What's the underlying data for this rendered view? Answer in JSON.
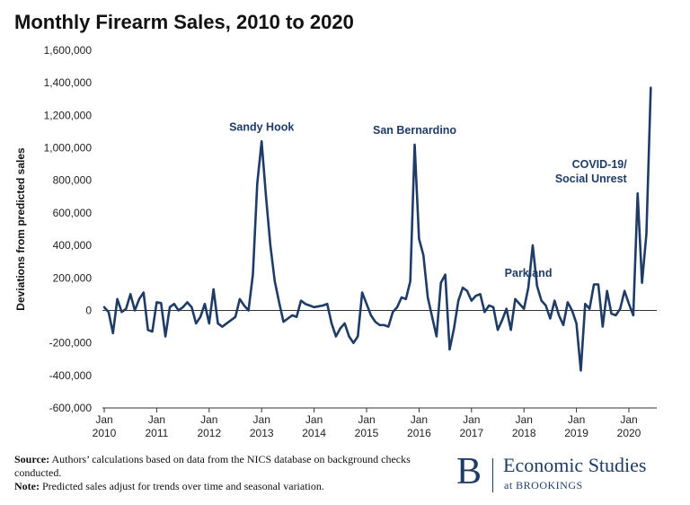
{
  "title": "Monthly Firearm Sales, 2010 to 2020",
  "chart_data": {
    "type": "line",
    "title": "Monthly Firearm Sales, 2010 to 2020",
    "xlabel": "",
    "ylabel": "Deviations from predicted sales",
    "ylim": [
      -600000,
      1600000
    ],
    "y_ticks": [
      -600000,
      -400000,
      -200000,
      0,
      200000,
      400000,
      600000,
      800000,
      1000000,
      1200000,
      1400000,
      1600000
    ],
    "y_tick_labels": [
      "-600,000",
      "-400,000",
      "-200,000",
      "0",
      "200,000",
      "400,000",
      "600,000",
      "800,000",
      "1,000,000",
      "1,200,000",
      "1,400,000",
      "1,600,000"
    ],
    "x_ticks": [
      {
        "top": "Jan",
        "bottom": "2010"
      },
      {
        "top": "Jan",
        "bottom": "2011"
      },
      {
        "top": "Jan",
        "bottom": "2012"
      },
      {
        "top": "Jan",
        "bottom": "2013"
      },
      {
        "top": "Jan",
        "bottom": "2014"
      },
      {
        "top": "Jan",
        "bottom": "2015"
      },
      {
        "top": "Jan",
        "bottom": "2016"
      },
      {
        "top": "Jan",
        "bottom": "2017"
      },
      {
        "top": "Jan",
        "bottom": "2018"
      },
      {
        "top": "Jan",
        "bottom": "2019"
      },
      {
        "top": "Jan",
        "bottom": "2020"
      }
    ],
    "grid": false,
    "series": [
      {
        "color": "#1f3c66",
        "start": "2010-01",
        "values": [
          20000,
          -10000,
          -140000,
          70000,
          -10000,
          10000,
          100000,
          0,
          70000,
          110000,
          -120000,
          -130000,
          50000,
          45000,
          -160000,
          20000,
          40000,
          0,
          20000,
          50000,
          20000,
          -80000,
          -40000,
          40000,
          -80000,
          130000,
          -80000,
          -100000,
          -80000,
          -60000,
          -40000,
          70000,
          30000,
          0,
          220000,
          780000,
          1040000,
          700000,
          400000,
          180000,
          50000,
          -70000,
          -50000,
          -30000,
          -40000,
          60000,
          40000,
          30000,
          20000,
          25000,
          30000,
          40000,
          -80000,
          -160000,
          -110000,
          -80000,
          -160000,
          -200000,
          -160000,
          110000,
          40000,
          -30000,
          -70000,
          -90000,
          -90000,
          -100000,
          -10000,
          20000,
          80000,
          70000,
          180000,
          1020000,
          440000,
          340000,
          80000,
          -40000,
          -160000,
          170000,
          220000,
          -240000,
          -110000,
          60000,
          140000,
          120000,
          60000,
          90000,
          100000,
          -10000,
          30000,
          20000,
          -120000,
          -60000,
          10000,
          -120000,
          70000,
          40000,
          10000,
          140000,
          400000,
          150000,
          60000,
          30000,
          -50000,
          60000,
          -30000,
          -90000,
          50000,
          0,
          -80000,
          -370000,
          40000,
          10000,
          160000,
          160000,
          -100000,
          120000,
          -20000,
          -30000,
          10000,
          120000,
          40000,
          -30000,
          720000,
          170000,
          470000,
          1370000
        ]
      }
    ],
    "annotations": [
      {
        "text": "Sandy Hook",
        "date": "2013-01"
      },
      {
        "text": "San Bernardino",
        "date": "2015-12"
      },
      {
        "text": "Parkland",
        "date": "2018-02"
      },
      {
        "text": [
          "COVID-19/",
          "Social Unrest"
        ],
        "date": "2020-03"
      }
    ]
  },
  "notes": {
    "source_label": "Source:",
    "source_text": "Authors’ calculations based on data from the NICS database on background checks conducted.",
    "note_label": "Note:",
    "note_text": "Predicted sales adjust for trends over time and seasonal variation."
  },
  "logo": {
    "letter": "B",
    "name": "Economic Studies",
    "sub": "at BROOKINGS"
  },
  "colors": {
    "line": "#1f3c66",
    "annotation": "#1f3c66",
    "axis": "#333333"
  }
}
